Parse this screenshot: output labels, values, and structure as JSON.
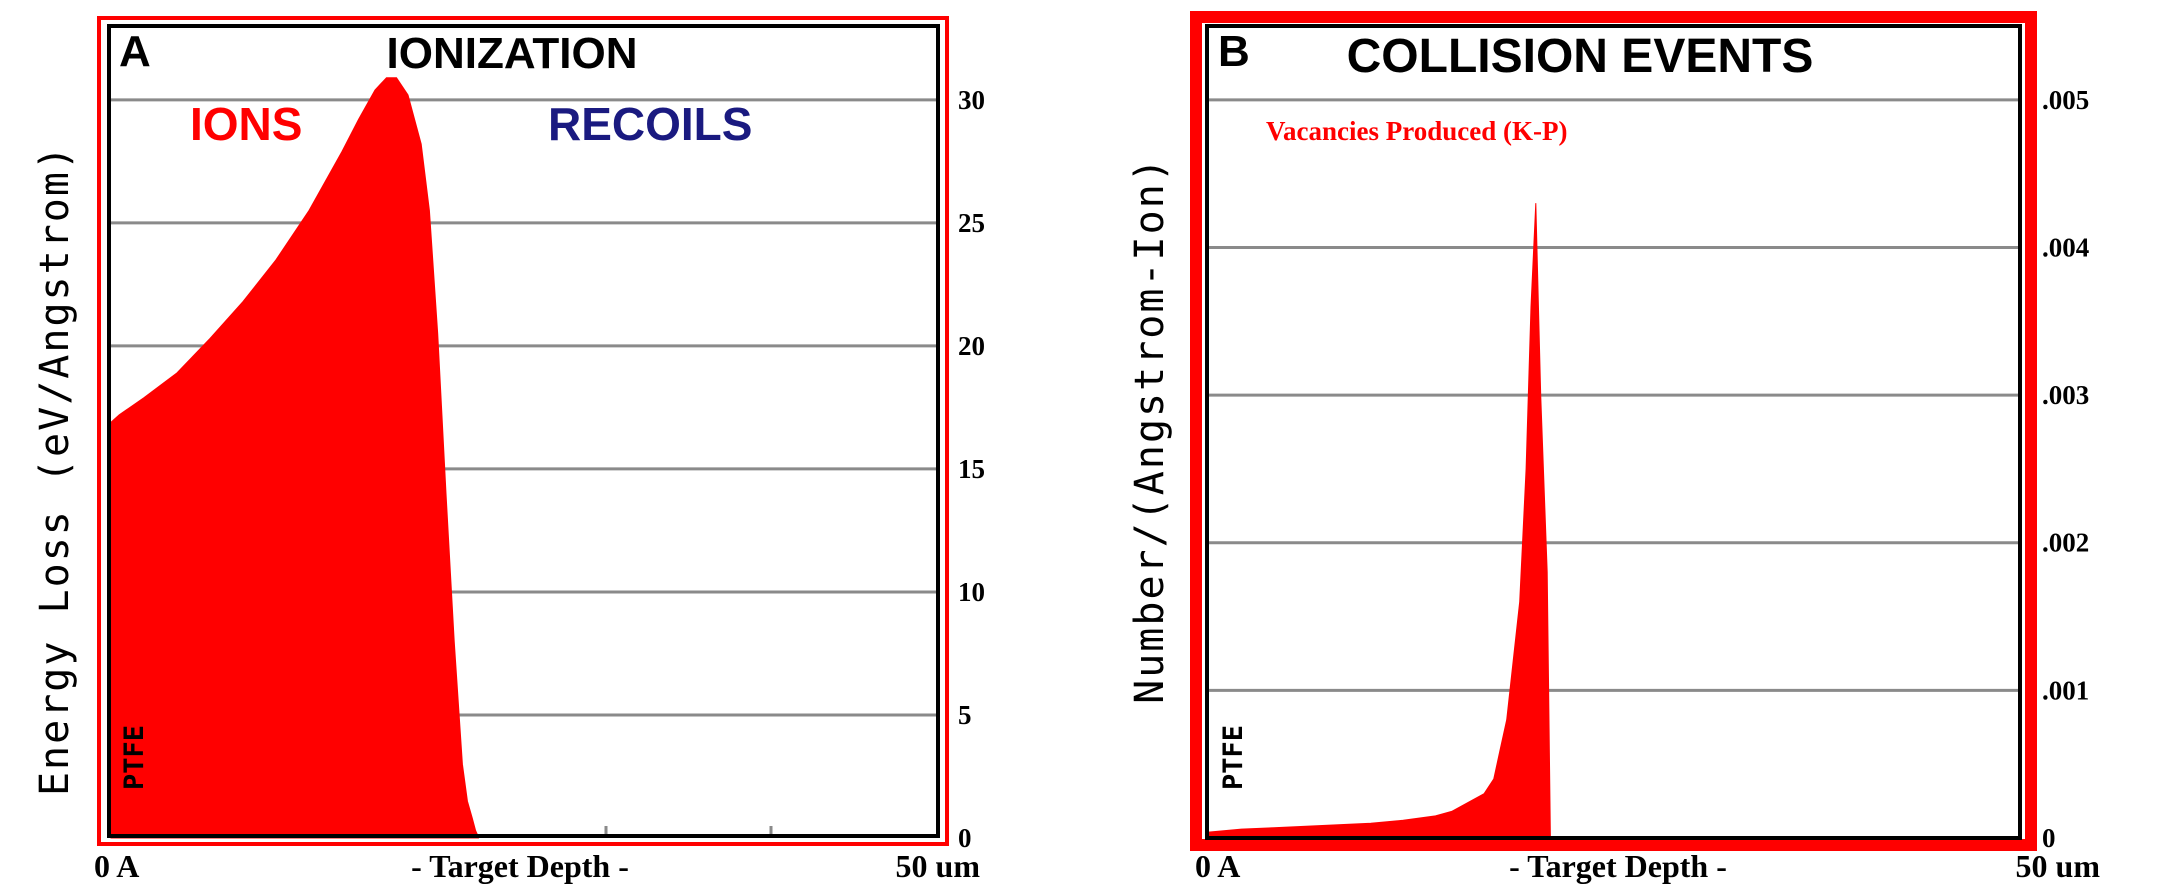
{
  "chart_data": [
    {
      "type": "area",
      "panel_letter": "A",
      "title": "IONIZATION",
      "legend": [
        {
          "label": "IONS",
          "color": "#ff0000"
        },
        {
          "label": "RECOILS",
          "color": "#1a1a80"
        }
      ],
      "ylabel": "Energy Loss (eV/Angstrom)",
      "xlabel": "- Target Depth -",
      "x_start_label": "0 A",
      "x_end_label": "50 um",
      "target_label": "PTFE",
      "xlim": [
        0,
        50
      ],
      "ylim": [
        0,
        33
      ],
      "yticks": [
        "30",
        "25",
        "20",
        "15",
        "10",
        "5",
        "0"
      ],
      "ytick_values": [
        30,
        25,
        20,
        15,
        10,
        5,
        0
      ],
      "grid": true,
      "series": [
        {
          "name": "IONS",
          "color": "#ff0000",
          "x": [
            0,
            0.5,
            2,
            4,
            6,
            8,
            10,
            12,
            14,
            15,
            16,
            16.7,
            17.3,
            18,
            18.8,
            19.3,
            19.8,
            20.3,
            20.8,
            21.3,
            21.6,
            21.9,
            22.1,
            22.3
          ],
          "y": [
            16.9,
            17.2,
            17.9,
            18.9,
            20.3,
            21.8,
            23.5,
            25.5,
            27.9,
            29.2,
            30.4,
            30.9,
            30.9,
            30.2,
            28.2,
            25.5,
            20.5,
            14,
            8,
            3,
            1.5,
            0.8,
            0.3,
            0
          ]
        },
        {
          "name": "RECOILS",
          "color": "#1a1a80",
          "x": [
            19,
            21
          ],
          "y": [
            0.1,
            0.1
          ]
        }
      ]
    },
    {
      "type": "area",
      "panel_letter": "B",
      "title": "COLLISION EVENTS",
      "legend": [
        {
          "label": "Vacancies Produced (K-P)",
          "color": "#ff0000"
        }
      ],
      "ylabel": "Number/(Angstrom-Ion)",
      "xlabel": "- Target Depth -",
      "x_start_label": "0 A",
      "x_end_label": "50 um",
      "target_label": "PTFE",
      "xlim": [
        0,
        50
      ],
      "ylim": [
        0,
        0.0055
      ],
      "yticks": [
        ".005",
        ".004",
        ".003",
        ".002",
        ".001",
        "0"
      ],
      "ytick_values": [
        0.005,
        0.004,
        0.003,
        0.002,
        0.001,
        0
      ],
      "grid": true,
      "series": [
        {
          "name": "Vacancies Produced (K-P)",
          "color": "#ff0000",
          "x": [
            0,
            2,
            4,
            6,
            8,
            10,
            12,
            14,
            15,
            16,
            17,
            17.6,
            18,
            18.4,
            18.8,
            19.2,
            19.6,
            19.9,
            20.2,
            20.5,
            20.9,
            21.1
          ],
          "y": [
            4e-05,
            6e-05,
            7e-05,
            8e-05,
            9e-05,
            0.0001,
            0.00012,
            0.00015,
            0.00018,
            0.00024,
            0.0003,
            0.0004,
            0.0006,
            0.0008,
            0.0012,
            0.0016,
            0.0025,
            0.0036,
            0.0043,
            0.003,
            0.0018,
            0
          ]
        }
      ]
    }
  ]
}
